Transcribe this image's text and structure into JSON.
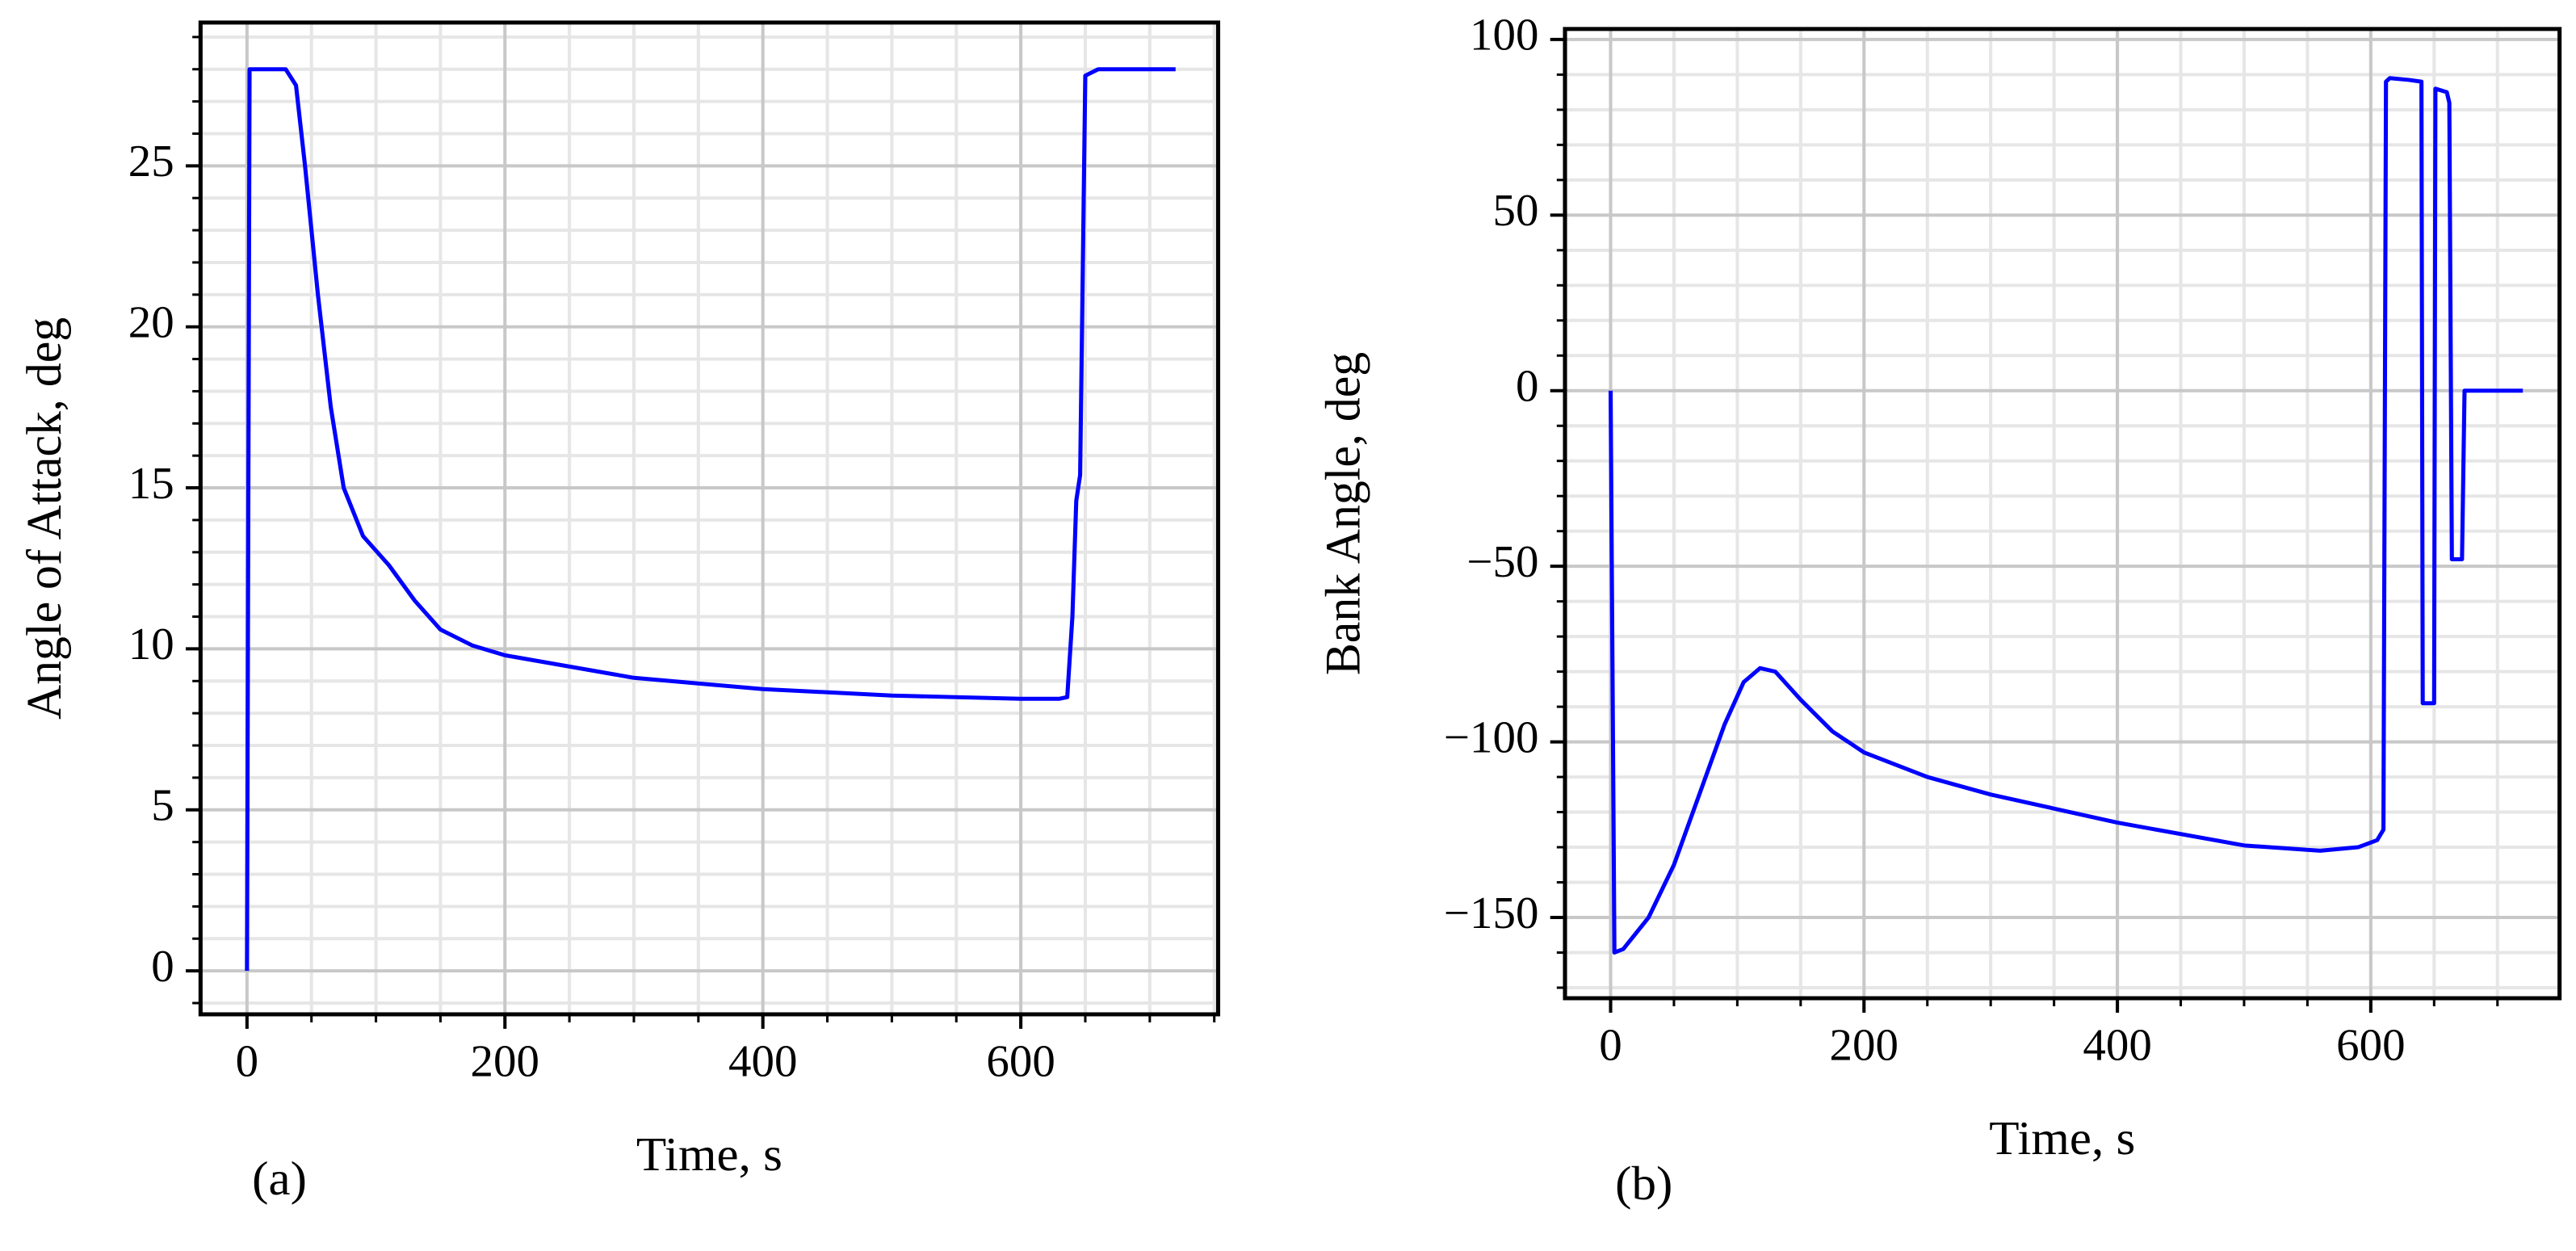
{
  "chart_data": [
    {
      "type": "line",
      "caption": "(a)",
      "xlabel": "Time, s",
      "ylabel": "Angle of Attack, deg",
      "color": "#0000ff",
      "grid": true,
      "xlim": [
        -36,
        753
      ],
      "ylim": [
        -1.35,
        29.45
      ],
      "xticks": [
        0,
        200,
        400,
        600
      ],
      "yticks": [
        0,
        5,
        10,
        15,
        20,
        25
      ],
      "xminorticks": [
        50,
        100,
        150,
        250,
        300,
        350,
        450,
        500,
        550,
        650,
        700,
        750
      ],
      "yminorticks": [
        -1,
        1,
        2,
        3,
        4,
        6,
        7,
        8,
        9,
        11,
        12,
        13,
        14,
        16,
        17,
        18,
        19,
        21,
        22,
        23,
        24,
        26,
        27,
        28,
        29
      ],
      "x": [
        0,
        2,
        30,
        38,
        45,
        55,
        65,
        75,
        90,
        110,
        130,
        150,
        175,
        200,
        300,
        400,
        500,
        600,
        630,
        636,
        640,
        643,
        646,
        650,
        660,
        720
      ],
      "values": [
        0,
        28,
        28,
        27.5,
        25,
        21,
        17.5,
        15,
        13.5,
        12.6,
        11.5,
        10.6,
        10.1,
        9.8,
        9.1,
        8.75,
        8.55,
        8.45,
        8.45,
        8.5,
        11,
        14.6,
        15.4,
        27.8,
        28,
        28
      ]
    },
    {
      "type": "line",
      "caption": "(b)",
      "xlabel": "Time, s",
      "ylabel": "Bank Angle, deg",
      "color": "#0000ff",
      "grid": true,
      "xlim": [
        -36,
        749
      ],
      "ylim": [
        -173,
        103
      ],
      "xticks": [
        0,
        200,
        400,
        600
      ],
      "yticks": [
        {
          "value": -150,
          "label": "−150"
        },
        {
          "value": -100,
          "label": "−100"
        },
        {
          "value": -50,
          "label": "−50"
        },
        0,
        50,
        100
      ],
      "xminorticks": [
        50,
        100,
        150,
        250,
        300,
        350,
        450,
        500,
        550,
        650,
        700
      ],
      "yminorticks": [
        -170,
        -160,
        -140,
        -130,
        -120,
        -110,
        -90,
        -80,
        -70,
        -60,
        -40,
        -30,
        -20,
        -10,
        10,
        20,
        30,
        40,
        60,
        70,
        80,
        90
      ],
      "x": [
        0,
        3,
        10,
        30,
        50,
        70,
        90,
        105,
        118,
        130,
        150,
        175,
        200,
        250,
        300,
        400,
        500,
        560,
        590,
        605,
        610,
        612,
        615,
        630,
        640,
        641,
        650,
        651,
        660,
        662,
        664,
        672,
        674,
        720
      ],
      "values": [
        0,
        -160,
        -159,
        -150,
        -135,
        -115,
        -95,
        -83,
        -79,
        -80,
        -88,
        -97,
        -103,
        -110,
        -115,
        -123,
        -129.5,
        -131,
        -130,
        -128,
        -125,
        88,
        89,
        88.5,
        88,
        -89,
        -89,
        86,
        85,
        82,
        -48,
        -48,
        0,
        0
      ]
    }
  ]
}
